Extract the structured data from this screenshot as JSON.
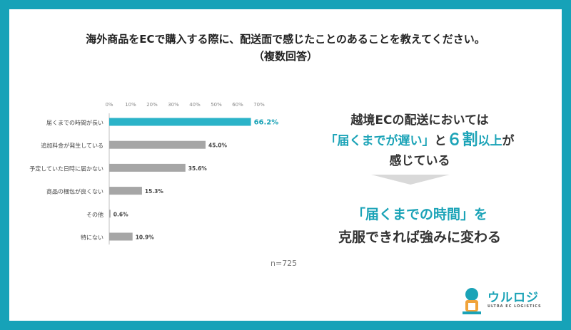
{
  "title": {
    "line1": "海外商品をECで購入する際に、配送面で感じたことのあることを教えてください。",
    "line2": "（複数回答）"
  },
  "sample": "n=725",
  "message": {
    "line1": "越境ECの配送においては",
    "line2_quote": "「届くまでが遅い」",
    "line2_mid": "と",
    "line2_num": "６割",
    "line2_rest": "以上",
    "line2_end": "が",
    "line3": "感じている",
    "line4": "「届くまでの時間」を",
    "line5": "克服できれば強みに変わる"
  },
  "logo": {
    "name": "ウルロジ",
    "tagline": "ULTRA EC LOGISTICS"
  },
  "colors": {
    "frame": "#16a2b8",
    "accent": "#1ba3b7",
    "bar": "#a6a6a6",
    "highlight_bar": "#2bb3c8"
  },
  "chart_data": {
    "type": "bar",
    "orientation": "horizontal",
    "categories": [
      "届くまでの時間が長い",
      "追加料金が発生している",
      "予定していた日時に届かない",
      "商品の梱包が良くない",
      "その他",
      "特にない"
    ],
    "values": [
      66.2,
      45.0,
      35.6,
      15.3,
      0.6,
      10.9
    ],
    "value_labels": [
      "66.2%",
      "45.0%",
      "35.6%",
      "15.3%",
      "0.6%",
      "10.9%"
    ],
    "xlim": [
      0,
      70
    ],
    "ticks": [
      "0%",
      "10%",
      "20%",
      "30%",
      "40%",
      "50%",
      "60%",
      "70%"
    ],
    "highlight_index": 0
  }
}
